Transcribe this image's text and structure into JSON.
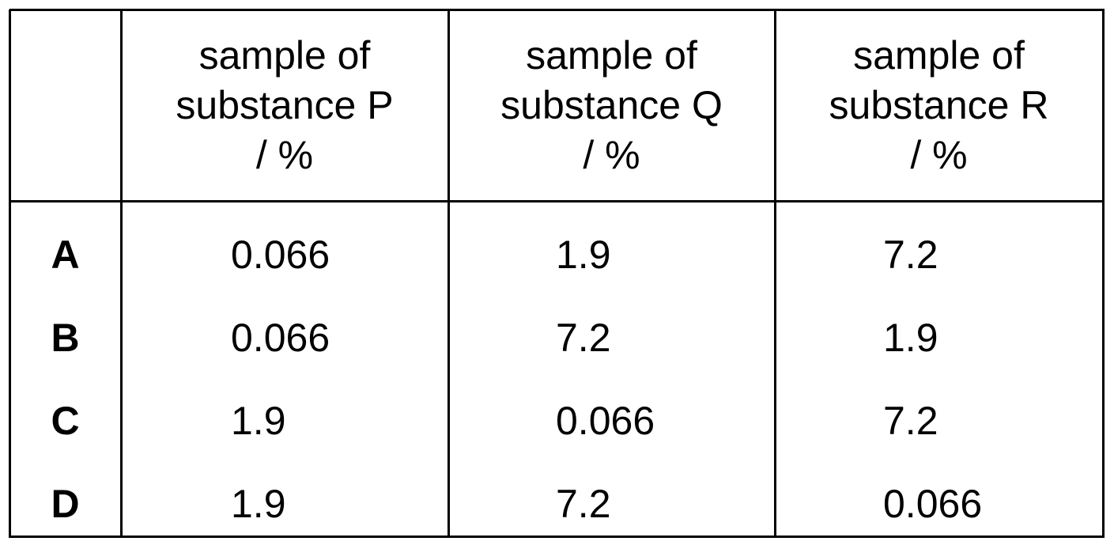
{
  "table": {
    "headers": [
      [
        "sample of",
        "substance P",
        "/ %"
      ],
      [
        "sample of",
        "substance Q",
        "/ %"
      ],
      [
        "sample of",
        "substance R",
        "/ %"
      ]
    ],
    "rows": [
      [
        "A",
        "0.066",
        "1.9",
        "7.2"
      ],
      [
        "B",
        "0.066",
        "7.2",
        "1.9"
      ],
      [
        "C",
        "1.9",
        "0.066",
        "7.2"
      ],
      [
        "D",
        "1.9",
        "7.2",
        "0.066"
      ]
    ]
  }
}
